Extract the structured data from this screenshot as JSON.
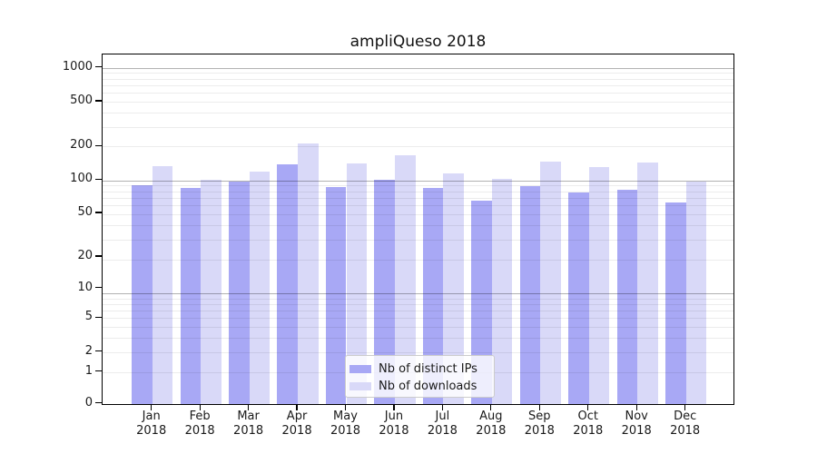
{
  "title": "ampliQueso 2018",
  "chart_data": {
    "type": "bar",
    "title": "ampliQueso 2018",
    "categories": [
      "Jan",
      "Feb",
      "Mar",
      "Apr",
      "May",
      "Jun",
      "Jul",
      "Aug",
      "Sep",
      "Oct",
      "Nov",
      "Dec"
    ],
    "category_year": "2018",
    "series": [
      {
        "name": "Nb of distinct IPs",
        "color": "#a8a8f5",
        "values": [
          87,
          82,
          93,
          134,
          84,
          97,
          82,
          63,
          85,
          74,
          79,
          61
        ]
      },
      {
        "name": "Nb of downloads",
        "color": "#d9d9f8",
        "values": [
          128,
          96,
          115,
          203,
          135,
          160,
          110,
          99,
          140,
          127,
          138,
          94
        ]
      }
    ],
    "yscale": "log1p",
    "y_ticks": [
      0,
      1,
      2,
      5,
      10,
      20,
      50,
      100,
      200,
      500,
      1000
    ],
    "ylim": [
      0,
      1300
    ],
    "xlabel": "",
    "ylabel": "",
    "grid": true,
    "legend_position": "inside-bottom-center"
  }
}
